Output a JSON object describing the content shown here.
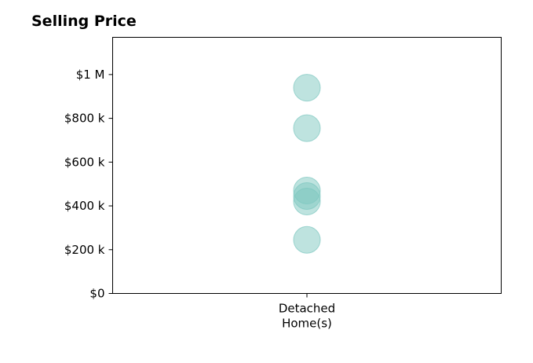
{
  "chart_data": {
    "type": "scatter",
    "title": "Selling Price",
    "xlabel": "",
    "ylabel": "",
    "categories": [
      "Detached\nHome(s)"
    ],
    "ylim": [
      0,
      1170000
    ],
    "yticks": [
      {
        "value": 0,
        "label": "$0"
      },
      {
        "value": 200000,
        "label": "$200 k"
      },
      {
        "value": 400000,
        "label": "$400 k"
      },
      {
        "value": 600000,
        "label": "$600 k"
      },
      {
        "value": 800000,
        "label": "$800 k"
      },
      {
        "value": 1000000,
        "label": "$1 M"
      }
    ],
    "series": [
      {
        "category": "Detached\nHome(s)",
        "color": "#7ec8c0",
        "values": [
          940000,
          755000,
          470000,
          445000,
          420000,
          245000
        ]
      }
    ],
    "grid": false,
    "legend": "none"
  }
}
